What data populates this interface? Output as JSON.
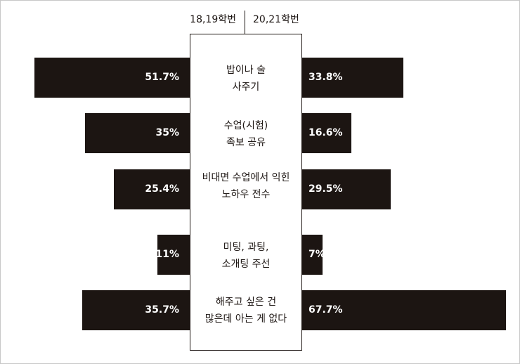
{
  "chart_data": {
    "type": "bar",
    "orientation": "horizontal-diverging",
    "series": [
      {
        "name": "18,19학번",
        "values": [
          51.7,
          35,
          25.4,
          11,
          35.7
        ],
        "labels": [
          "51.7%",
          "35%",
          "25.4%",
          "11%",
          "35.7%"
        ]
      },
      {
        "name": "20,21학번",
        "values": [
          33.8,
          16.6,
          29.5,
          7,
          67.7
        ],
        "labels": [
          "33.8%",
          "16.6%",
          "29.5%",
          "7%",
          "67.7%"
        ]
      }
    ],
    "categories": [
      [
        "밥이나 술",
        "사주기"
      ],
      [
        "수업(시험)",
        "족보 공유"
      ],
      [
        "비대면 수업에서 익힌",
        "노하우 전수"
      ],
      [
        "미팅, 과팅,",
        "소개팅 주선"
      ],
      [
        "해주고 싶은 건",
        "많은데 아는 게 없다"
      ]
    ],
    "colors": {
      "bar": "#1c1512",
      "bar_text": "#ffffff",
      "text": "#1c1512",
      "border": "#c8c8c8"
    },
    "legend_placement": "top-center",
    "grid": false
  }
}
